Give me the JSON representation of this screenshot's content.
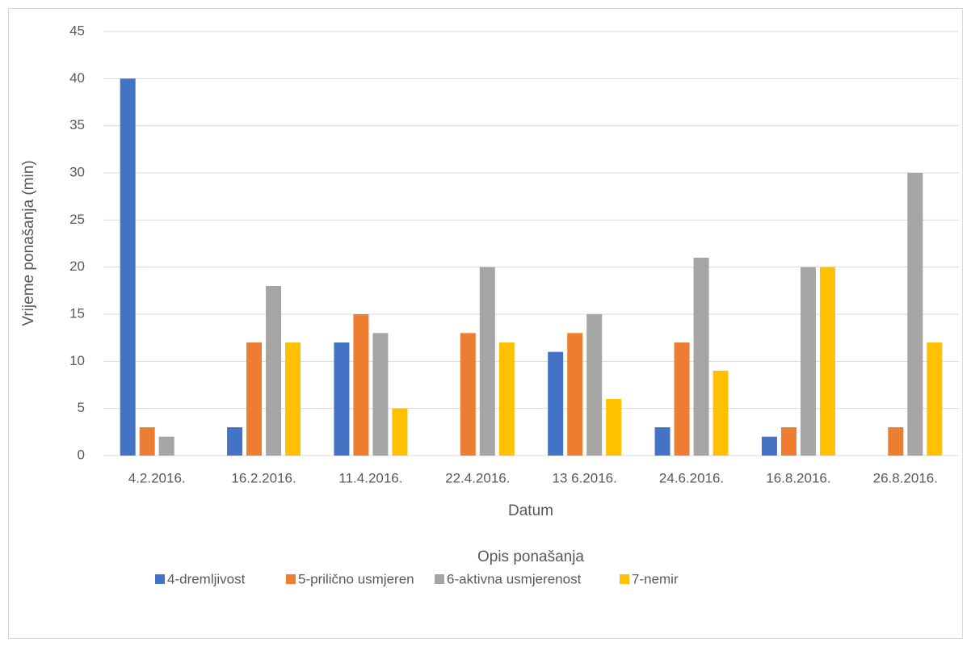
{
  "chart_data": {
    "type": "bar",
    "y_label": "Vrijeme ponašanja (min)",
    "x_label": "Datum",
    "legend_title": "Opis ponašanja",
    "categories": [
      "4.2.2016.",
      "16.2.2016.",
      "11.4.2016.",
      "22.4.2016.",
      "13 6.2016.",
      "24.6.2016.",
      "16.8.2016.",
      "26.8.2016."
    ],
    "series": [
      {
        "name": "4-dremljivost",
        "color": "#4472c4",
        "values": [
          40,
          3,
          12,
          0,
          11,
          3,
          2,
          0
        ]
      },
      {
        "name": "5-prilično usmjeren",
        "color": "#ed7d31",
        "values": [
          3,
          12,
          15,
          13,
          13,
          12,
          3,
          3
        ]
      },
      {
        "name": "6-aktivna usmjerenost",
        "color": "#a5a5a5",
        "values": [
          2,
          18,
          13,
          20,
          15,
          21,
          20,
          30
        ]
      },
      {
        "name": "7-nemir",
        "color": "#ffc000",
        "values": [
          0,
          12,
          5,
          12,
          6,
          9,
          20,
          12
        ]
      }
    ],
    "ylim": [
      0,
      45
    ],
    "yticks": [
      0,
      5,
      10,
      15,
      20,
      25,
      30,
      35,
      40,
      45
    ],
    "grid": true,
    "legend": "bottom"
  }
}
